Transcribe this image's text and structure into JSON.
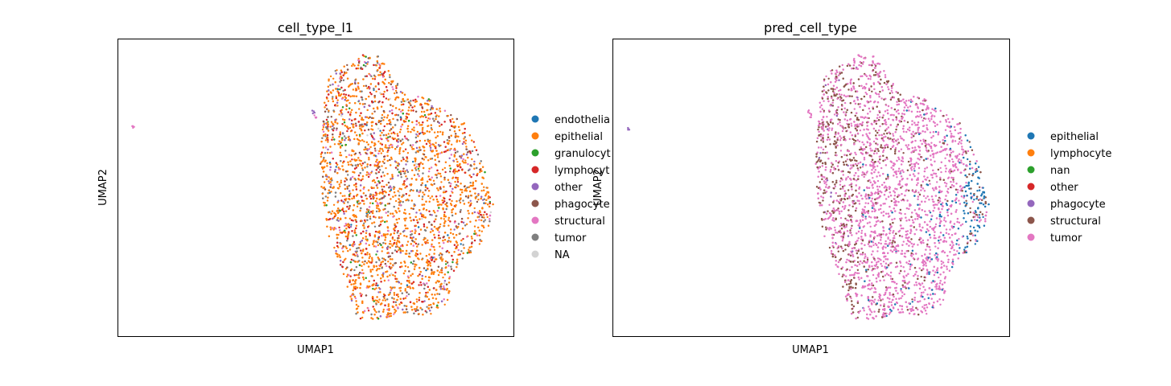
{
  "chart_data": [
    {
      "type": "scatter",
      "title": "cell_type_l1",
      "xlabel": "UMAP1",
      "ylabel": "UMAP2",
      "xlim": [
        0,
        1
      ],
      "ylim": [
        0,
        1
      ],
      "grid": false,
      "legend": "right, outside plot, clipped at right edge",
      "legend_entries": [
        {
          "name": "endothelial",
          "label": "endothelia",
          "color": "#1f77b4"
        },
        {
          "name": "epithelial",
          "label": "epithelial",
          "color": "#ff7f0e"
        },
        {
          "name": "granulocyte",
          "label": "granulocyt",
          "color": "#2ca02c"
        },
        {
          "name": "lymphocyte",
          "label": "lymphocyt",
          "color": "#d62728"
        },
        {
          "name": "other",
          "label": "other",
          "color": "#9467bd"
        },
        {
          "name": "phagocyte",
          "label": "phagocyte",
          "color": "#8c564b"
        },
        {
          "name": "structural",
          "label": "structural",
          "color": "#e377c2"
        },
        {
          "name": "tumor",
          "label": "tumor",
          "color": "#7f7f7f"
        },
        {
          "name": "NA",
          "label": "NA",
          "color": "#d3d3d3"
        }
      ],
      "mix_weights": [
        0.01,
        0.56,
        0.02,
        0.15,
        0.05,
        0.06,
        0.05,
        0.09,
        0.01
      ],
      "main_cluster": {
        "x_range": [
          0.51,
          0.95
        ],
        "y_range": [
          0.05,
          0.95
        ]
      },
      "outlier_points": [
        {
          "x": 0.04,
          "y": 0.7,
          "category": "structural"
        },
        {
          "x": 0.495,
          "y": 0.755,
          "category": "other"
        },
        {
          "x": 0.5,
          "y": 0.74,
          "category": "structural"
        }
      ]
    },
    {
      "type": "scatter",
      "title": "pred_cell_type",
      "xlabel": "UMAP1",
      "ylabel": "UMAP2",
      "xlim": [
        0,
        1
      ],
      "ylim": [
        0,
        1
      ],
      "grid": false,
      "legend": "right, outside plot",
      "legend_entries": [
        {
          "name": "epithelial",
          "label": "epithelial",
          "color": "#1f77b4"
        },
        {
          "name": "lymphocyte",
          "label": "lymphocyte",
          "color": "#ff7f0e"
        },
        {
          "name": "nan",
          "label": "nan",
          "color": "#2ca02c"
        },
        {
          "name": "other",
          "label": "other",
          "color": "#d62728"
        },
        {
          "name": "phagocyte",
          "label": "phagocyte",
          "color": "#9467bd"
        },
        {
          "name": "structural",
          "label": "structural",
          "color": "#8c564b"
        },
        {
          "name": "tumor",
          "label": "tumor",
          "color": "#e377c2"
        }
      ],
      "regional_composition": [
        {
          "region": "left edge",
          "dominant": [
            "structural",
            "tumor"
          ]
        },
        {
          "region": "center",
          "dominant": [
            "tumor"
          ]
        },
        {
          "region": "right edge",
          "dominant": [
            "epithelial",
            "structural"
          ]
        }
      ],
      "main_cluster": {
        "x_range": [
          0.51,
          0.95
        ],
        "y_range": [
          0.05,
          0.95
        ]
      },
      "outlier_points": [
        {
          "x": 0.04,
          "y": 0.7,
          "category": "phagocyte"
        },
        {
          "x": 0.495,
          "y": 0.755,
          "category": "tumor"
        },
        {
          "x": 0.5,
          "y": 0.74,
          "category": "tumor"
        }
      ]
    }
  ]
}
